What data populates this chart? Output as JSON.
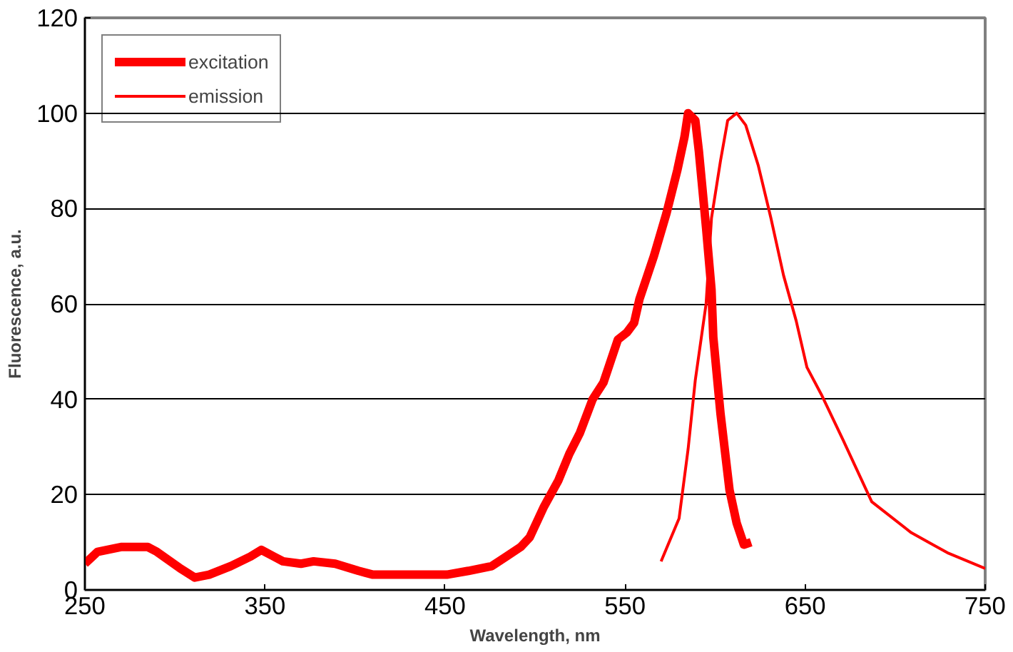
{
  "chart_data": {
    "type": "line",
    "xlabel": "Wavelength, nm",
    "ylabel": "Fluorescence, a.u.",
    "xlim": [
      250,
      750
    ],
    "ylim": [
      0,
      120
    ],
    "xticks": [
      250,
      350,
      450,
      550,
      650,
      750
    ],
    "yticks": [
      0,
      20,
      40,
      60,
      80,
      100,
      120
    ],
    "grid": "y",
    "legend": "top left",
    "line_style": "solid",
    "marker": "none",
    "series": [
      {
        "name": "excitation",
        "color": "#ff0000",
        "x": [
          250,
          257,
          270,
          285,
          290,
          303,
          311,
          319,
          331,
          342,
          348,
          355,
          360,
          370,
          377,
          389,
          402,
          410,
          426,
          451,
          463,
          476,
          484,
          492,
          497,
          505,
          513,
          519,
          525,
          532,
          538,
          542,
          546,
          551,
          555,
          558,
          566,
          573,
          579,
          583,
          585,
          589,
          591,
          595,
          598,
          599,
          603,
          608,
          612,
          616,
          620
        ],
        "values": [
          5.5,
          8,
          9,
          9,
          8,
          4.5,
          2.6,
          3.2,
          5,
          7,
          8.4,
          7,
          6,
          5.5,
          6,
          5.5,
          4,
          3.2,
          3.2,
          3.2,
          4,
          5,
          7,
          9,
          11,
          17.5,
          23,
          28.5,
          33,
          40,
          43.5,
          48,
          52.5,
          54,
          56,
          61,
          70,
          79,
          88,
          95,
          100,
          98.5,
          92,
          76,
          63,
          53,
          37,
          21,
          14,
          9.5,
          10
        ]
      },
      {
        "name": "emission",
        "color": "#ff0000",
        "x": [
          570,
          580,
          585,
          589,
          595,
          598,
          603,
          607,
          612,
          617,
          624,
          631,
          638,
          645,
          651,
          659,
          671,
          687,
          709,
          729,
          750
        ],
        "values": [
          6,
          15,
          29.5,
          44,
          60,
          78,
          90,
          98.5,
          100,
          97.5,
          89,
          78,
          66,
          56.5,
          46.7,
          41,
          31.5,
          18.5,
          12,
          7.8,
          4.5
        ]
      }
    ]
  }
}
